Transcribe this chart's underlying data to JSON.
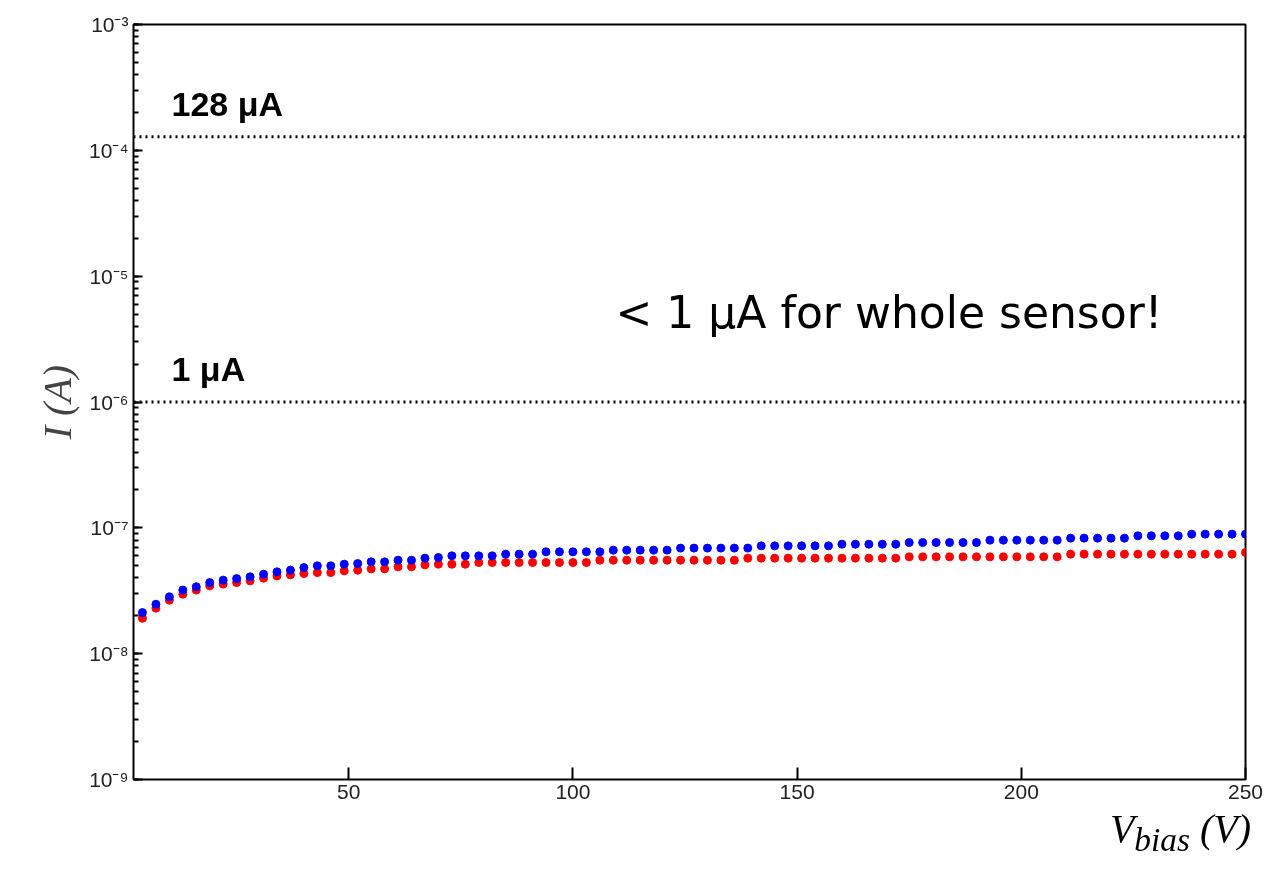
{
  "chart_data": {
    "type": "scatter",
    "xlabel": "V$_{bias}$ (V)",
    "ylabel": "I (A)",
    "x": [
      4,
      7,
      10,
      13,
      16,
      19,
      22,
      25,
      28,
      31,
      34,
      37,
      40,
      43,
      46,
      49,
      52,
      55,
      58,
      61,
      64,
      67,
      70,
      73,
      76,
      79,
      82,
      85,
      88,
      91,
      94,
      97,
      100,
      103,
      106,
      109,
      112,
      115,
      118,
      121,
      124,
      127,
      130,
      133,
      136,
      139,
      142,
      145,
      148,
      151,
      154,
      157,
      160,
      163,
      166,
      169,
      172,
      175,
      178,
      181,
      184,
      187,
      190,
      193,
      196,
      199,
      202,
      205,
      208,
      211,
      214,
      217,
      220,
      223,
      226,
      229,
      232,
      235,
      238,
      241,
      244,
      247,
      250
    ],
    "series": [
      {
        "color": "#ff0000",
        "values": [
          1.91e-08,
          2.3e-08,
          2.66e-08,
          2.97e-08,
          3.2e-08,
          3.46e-08,
          3.57e-08,
          3.67e-08,
          3.79e-08,
          3.98e-08,
          4.15e-08,
          4.23e-08,
          4.33e-08,
          4.41e-08,
          4.41e-08,
          4.55e-08,
          4.61e-08,
          4.72e-08,
          4.72e-08,
          4.9e-08,
          4.9e-08,
          5.08e-08,
          5.14e-08,
          5.14e-08,
          5.14e-08,
          5.3e-08,
          5.3e-08,
          5.3e-08,
          5.3e-08,
          5.3e-08,
          5.3e-08,
          5.3e-08,
          5.3e-08,
          5.3e-08,
          5.53e-08,
          5.53e-08,
          5.53e-08,
          5.53e-08,
          5.53e-08,
          5.53e-08,
          5.53e-08,
          5.53e-08,
          5.53e-08,
          5.53e-08,
          5.53e-08,
          5.74e-08,
          5.74e-08,
          5.74e-08,
          5.74e-08,
          5.74e-08,
          5.74e-08,
          5.74e-08,
          5.74e-08,
          5.74e-08,
          5.74e-08,
          5.74e-08,
          5.74e-08,
          5.88e-08,
          5.88e-08,
          5.88e-08,
          5.88e-08,
          5.88e-08,
          5.88e-08,
          5.88e-08,
          5.88e-08,
          5.88e-08,
          5.88e-08,
          5.88e-08,
          5.88e-08,
          6.18e-08,
          6.18e-08,
          6.18e-08,
          6.18e-08,
          6.18e-08,
          6.18e-08,
          6.18e-08,
          6.18e-08,
          6.18e-08,
          6.18e-08,
          6.18e-08,
          6.18e-08,
          6.18e-08,
          6.37e-08
        ]
      },
      {
        "color": "#0000ff",
        "values": [
          2.12e-08,
          2.47e-08,
          2.83e-08,
          3.2e-08,
          3.4e-08,
          3.67e-08,
          3.84e-08,
          3.95e-08,
          4.08e-08,
          4.28e-08,
          4.47e-08,
          4.61e-08,
          4.83e-08,
          4.99e-08,
          4.99e-08,
          5.14e-08,
          5.2e-08,
          5.37e-08,
          5.37e-08,
          5.53e-08,
          5.53e-08,
          5.74e-08,
          5.81e-08,
          5.99e-08,
          5.99e-08,
          5.99e-08,
          5.99e-08,
          6.18e-08,
          6.18e-08,
          6.18e-08,
          6.45e-08,
          6.45e-08,
          6.45e-08,
          6.45e-08,
          6.45e-08,
          6.65e-08,
          6.65e-08,
          6.65e-08,
          6.65e-08,
          6.65e-08,
          6.9e-08,
          6.9e-08,
          6.9e-08,
          6.9e-08,
          6.9e-08,
          6.9e-08,
          7.19e-08,
          7.19e-08,
          7.19e-08,
          7.19e-08,
          7.19e-08,
          7.19e-08,
          7.41e-08,
          7.41e-08,
          7.41e-08,
          7.41e-08,
          7.41e-08,
          7.64e-08,
          7.64e-08,
          7.64e-08,
          7.64e-08,
          7.64e-08,
          7.64e-08,
          7.98e-08,
          7.98e-08,
          7.98e-08,
          7.98e-08,
          7.98e-08,
          7.98e-08,
          8.28e-08,
          8.28e-08,
          8.28e-08,
          8.28e-08,
          8.28e-08,
          8.64e-08,
          8.64e-08,
          8.64e-08,
          8.64e-08,
          8.91e-08,
          8.91e-08,
          8.91e-08,
          8.91e-08,
          8.91e-08
        ]
      }
    ],
    "marker": "circle",
    "log": true,
    "xlim": [
      2,
      250
    ],
    "xticks": [
      50,
      100,
      150,
      200,
      250
    ],
    "ylim": [
      1e-09,
      0.001
    ],
    "yticks": [
      {
        "value": 1e-09,
        "label": "10⁻⁹"
      },
      {
        "value": 1e-08,
        "label": "10⁻⁸"
      },
      {
        "value": 1e-07,
        "label": "10⁻⁷"
      },
      {
        "value": 1e-06,
        "label": "10⁻⁶"
      },
      {
        "value": 1e-05,
        "label": "10⁻⁵"
      },
      {
        "value": 0.0001,
        "label": "10⁻⁴"
      },
      {
        "value": 0.001,
        "label": "10⁻³"
      }
    ],
    "ref_lines": [
      {
        "axis": "y",
        "value": 0.000128,
        "label": "128 μA",
        "line_style": "dotted",
        "color": "#000000"
      },
      {
        "axis": "y",
        "value": 1e-06,
        "label": "1 μA",
        "line_style": "dotted",
        "color": "#000000"
      }
    ],
    "annotations": [
      "< 1 μA for whole sensor!"
    ]
  }
}
